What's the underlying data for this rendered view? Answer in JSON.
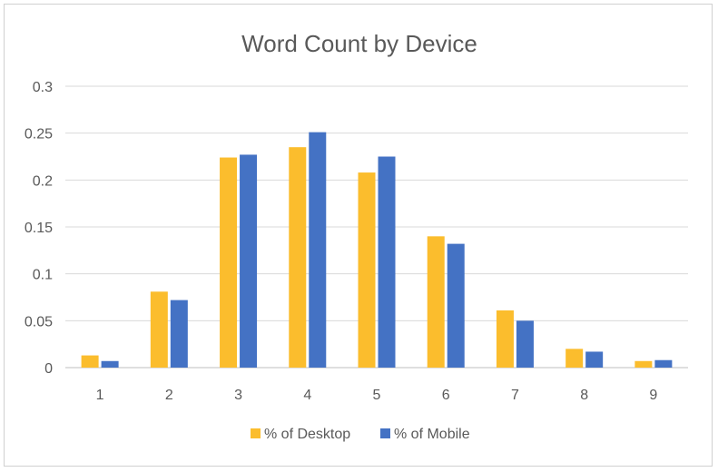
{
  "chart_data": {
    "type": "bar",
    "title": "Word Count by Device",
    "xlabel": "",
    "ylabel": "",
    "categories": [
      "1",
      "2",
      "3",
      "4",
      "5",
      "6",
      "7",
      "8",
      "9"
    ],
    "series": [
      {
        "name": "% of Desktop",
        "color": "#FBBD2D",
        "values": [
          0.013,
          0.081,
          0.224,
          0.235,
          0.208,
          0.14,
          0.061,
          0.02,
          0.007
        ]
      },
      {
        "name": "% of Mobile",
        "color": "#4472C4",
        "values": [
          0.007,
          0.072,
          0.227,
          0.251,
          0.225,
          0.132,
          0.05,
          0.017,
          0.008
        ]
      }
    ],
    "ylim": [
      0,
      0.3
    ],
    "yticks": [
      "0",
      "0.05",
      "0.1",
      "0.15",
      "0.2",
      "0.25",
      "0.3"
    ],
    "grid": true,
    "legend_position": "bottom"
  }
}
